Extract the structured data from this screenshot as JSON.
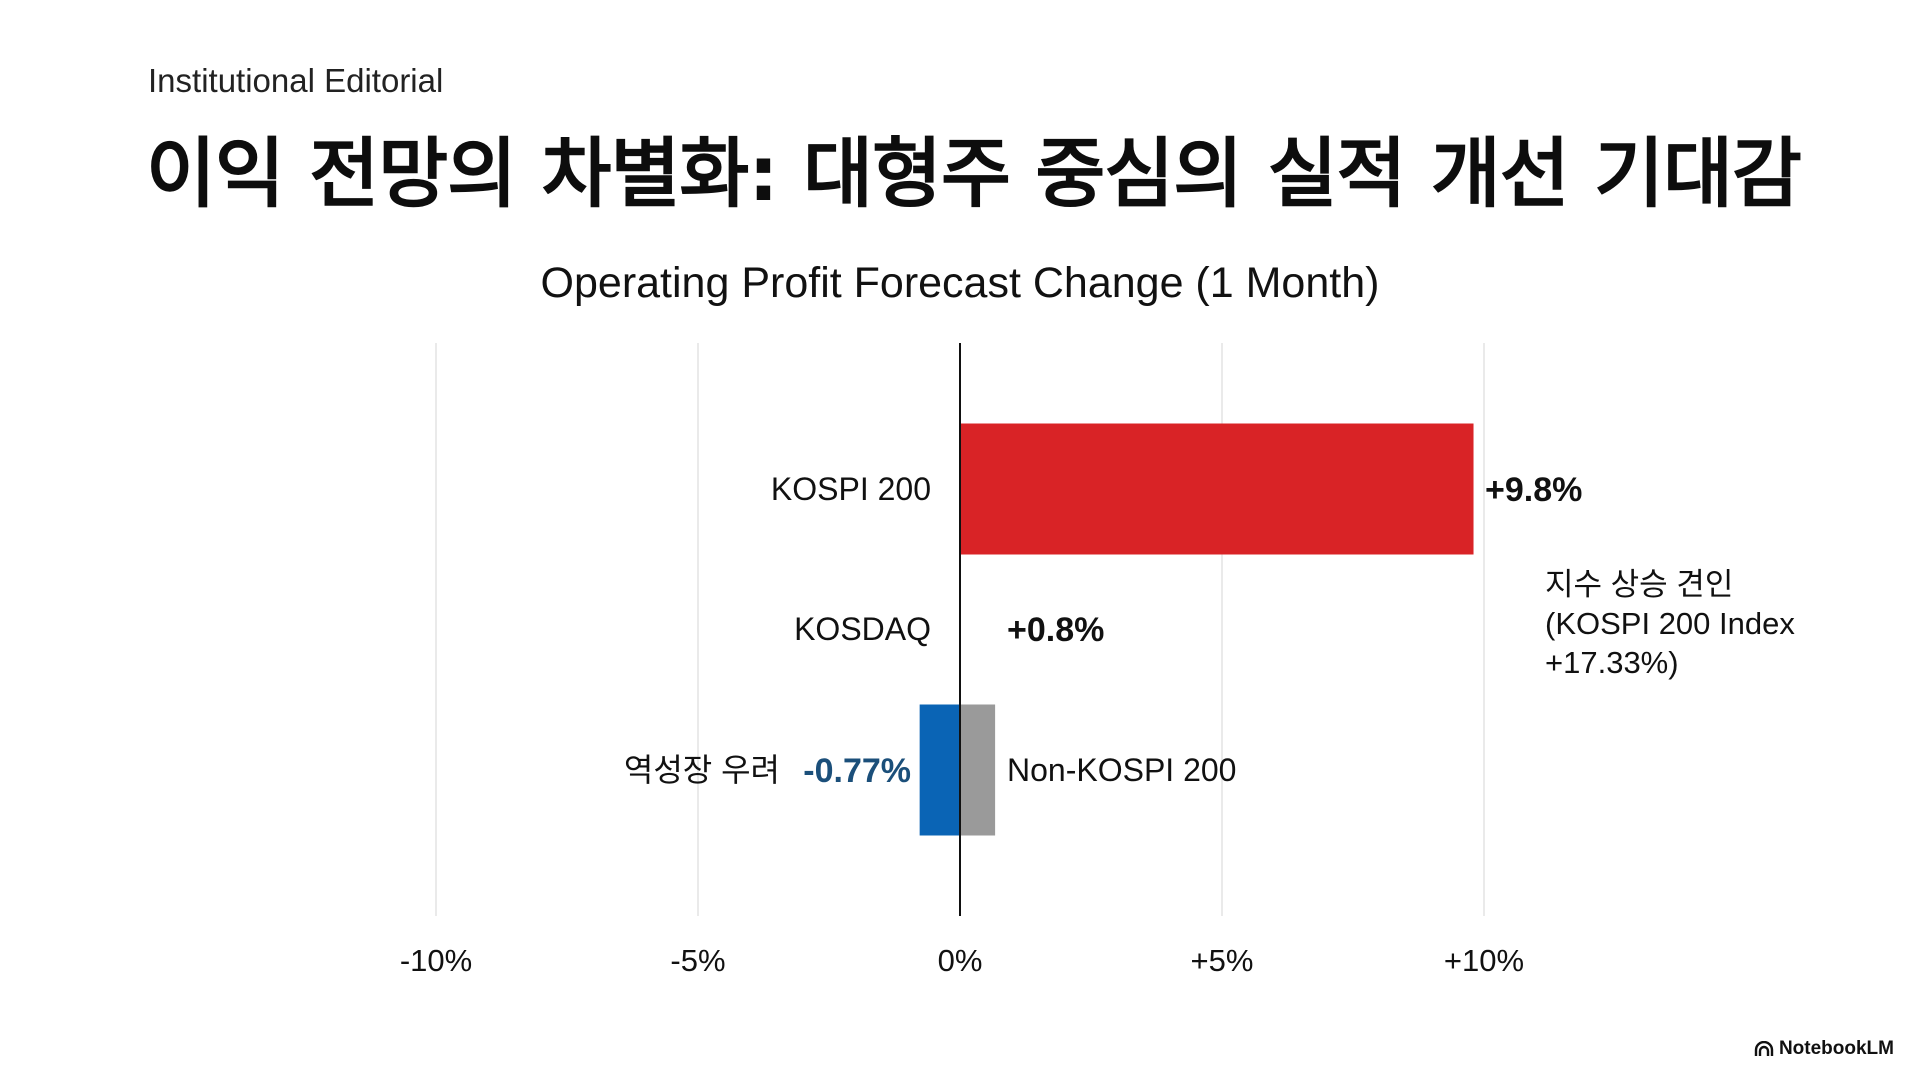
{
  "header": {
    "kicker": "Institutional Editorial",
    "headline": "이익 전망의 차별화: 대형주 중심의 실적 개선 기대감"
  },
  "chart_data": {
    "type": "bar",
    "orientation": "horizontal",
    "title": "Operating Profit Forecast Change (1 Month)",
    "xlabel": "",
    "ylabel": "",
    "xlim": [
      -10,
      10
    ],
    "xticks": [
      -10,
      -5,
      0,
      5,
      10
    ],
    "xtick_labels": [
      "-10%",
      "-5%",
      "0%",
      "+5%",
      "+10%"
    ],
    "grid": true,
    "categories": [
      "KOSPI 200",
      "KOSDAQ",
      "Non-KOSPI 200"
    ],
    "bars": [
      {
        "category": "KOSPI 200",
        "value": 9.8,
        "label": "+9.8%",
        "color": "#d92326"
      },
      {
        "category": "KOSDAQ",
        "value": 0.8,
        "label": "+0.8%",
        "color": null
      },
      {
        "category": "Non-KOSPI 200",
        "value": -0.77,
        "label": "-0.77%",
        "color": "#0a64b5",
        "label_color": "#1b4f7a"
      },
      {
        "category": "Non-KOSPI 200",
        "value": 0.67,
        "label": "",
        "color": "#9a9a9a"
      }
    ],
    "annotations": {
      "negative_note": "역성장 우려",
      "index_note_lines": [
        "지수 상승 견인",
        "(KOSPI 200 Index",
        "+17.33%)"
      ]
    }
  },
  "footer": {
    "brand": "NotebookLM"
  }
}
